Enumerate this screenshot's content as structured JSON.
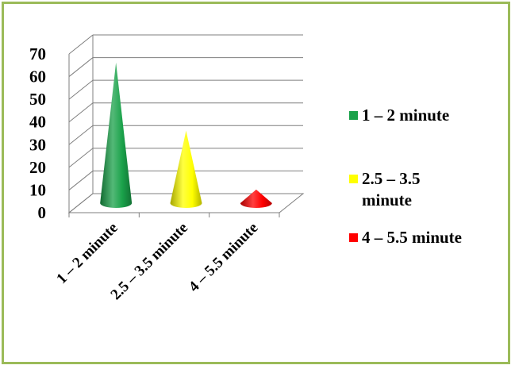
{
  "chart_data": {
    "type": "bar",
    "style": "3d-cone",
    "categories": [
      "1 – 2 minute",
      "2.5 – 3.5 minute",
      "4 – 5.5 minute"
    ],
    "values": [
      62,
      32,
      6
    ],
    "colors": [
      "#1aa24a",
      "#ffff00",
      "#ff0000"
    ],
    "ylim": [
      0,
      70
    ],
    "yticks": [
      0,
      10,
      20,
      30,
      40,
      50,
      60,
      70
    ],
    "grid": true,
    "legend_position": "right",
    "legend": [
      {
        "label": "1 – 2 minute",
        "color": "#1aa24a"
      },
      {
        "label": "2.5 – 3.5 minute",
        "color": "#ffff00"
      },
      {
        "label": "4 – 5.5 minute",
        "color": "#ff0000"
      }
    ]
  }
}
